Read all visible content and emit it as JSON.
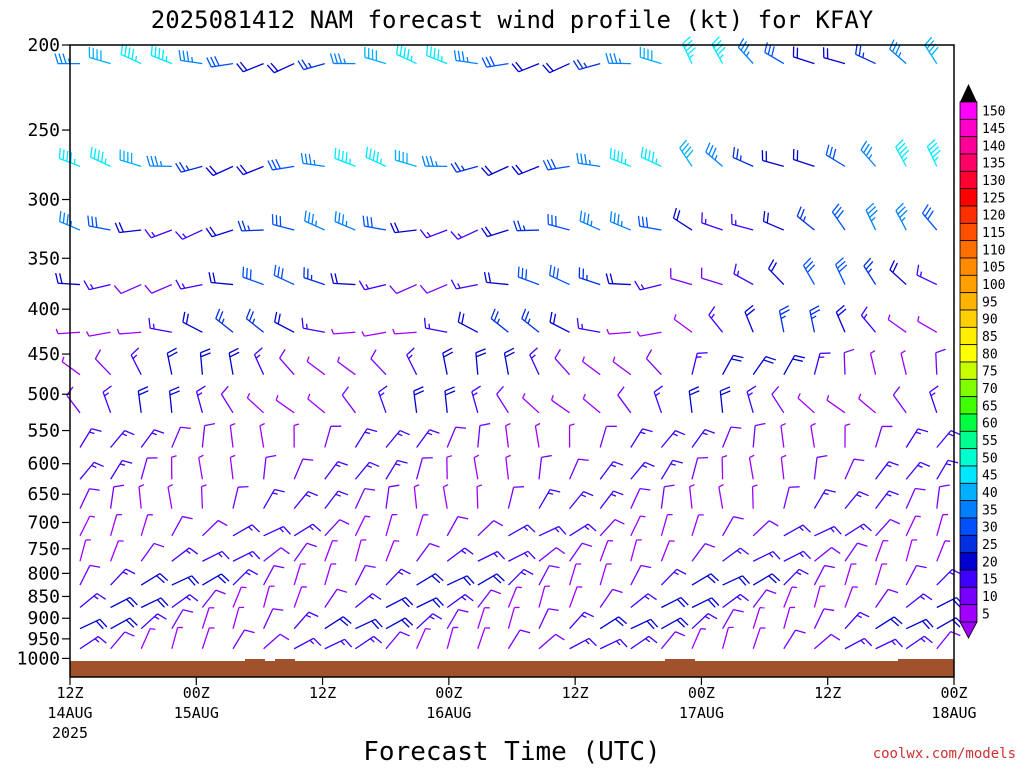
{
  "chart_data": {
    "type": "wind_barb_profile",
    "title": "2025081412 NAM forecast wind profile (kt) for KFAY",
    "xlabel": "Forecast Time (UTC)",
    "ylabel": "",
    "y_ticks": [
      "200",
      "250",
      "300",
      "350",
      "400",
      "450",
      "500",
      "550",
      "600",
      "650",
      "700",
      "750",
      "800",
      "850",
      "900",
      "950",
      "1000"
    ],
    "x_ticks": [
      {
        "time": "12Z",
        "date": "14AUG",
        "year": "2025"
      },
      {
        "time": "00Z",
        "date": "15AUG",
        "year": ""
      },
      {
        "time": "12Z",
        "date": "",
        "year": ""
      },
      {
        "time": "00Z",
        "date": "16AUG",
        "year": ""
      },
      {
        "time": "12Z",
        "date": "",
        "year": ""
      },
      {
        "time": "00Z",
        "date": "17AUG",
        "year": ""
      },
      {
        "time": "12Z",
        "date": "",
        "year": ""
      },
      {
        "time": "00Z",
        "date": "18AUG",
        "year": ""
      }
    ],
    "x_hours": [
      0,
      84
    ],
    "colorbar_labels": [
      "150",
      "145",
      "140",
      "135",
      "130",
      "125",
      "120",
      "115",
      "110",
      "105",
      "100",
      "95",
      "90",
      "85",
      "80",
      "75",
      "70",
      "65",
      "60",
      "55",
      "50",
      "45",
      "40",
      "35",
      "30",
      "25",
      "20",
      "15",
      "10",
      "5"
    ],
    "colorbar_colors": [
      "#ff00ff",
      "#ff00c8",
      "#ff0096",
      "#ff0064",
      "#ff0032",
      "#ff0000",
      "#ff3000",
      "#ff5000",
      "#ff7000",
      "#ff8c00",
      "#ffa000",
      "#ffb400",
      "#ffd000",
      "#ffee00",
      "#ffff00",
      "#c8ff00",
      "#80ff00",
      "#40ff00",
      "#00ff40",
      "#00ff90",
      "#00ffd0",
      "#00e8ff",
      "#00b0ff",
      "#0080ff",
      "#0050ff",
      "#0030e0",
      "#0000d0",
      "#4000ff",
      "#7800ff",
      "#a000ff"
    ],
    "surface_color": "#a0522d",
    "series_levels": [
      {
        "level": 210,
        "dir": "W",
        "speed_range_kt": [
          20,
          45
        ]
      },
      {
        "level": 275,
        "dir": "W",
        "speed_range_kt": [
          20,
          45
        ]
      },
      {
        "level": 325,
        "dir": "W",
        "speed_range_kt": [
          15,
          35
        ]
      },
      {
        "level": 375,
        "dir": "W",
        "speed_range_kt": [
          10,
          30
        ]
      },
      {
        "level": 425,
        "dir": "W-NW",
        "speed_range_kt": [
          5,
          25
        ]
      },
      {
        "level": 475,
        "dir": "NW-N",
        "speed_range_kt": [
          5,
          20
        ]
      },
      {
        "level": 525,
        "dir": "NW-N",
        "speed_range_kt": [
          5,
          20
        ]
      },
      {
        "level": 575,
        "dir": "N-NE",
        "speed_range_kt": [
          5,
          15
        ]
      },
      {
        "level": 625,
        "dir": "N-NE",
        "speed_range_kt": [
          5,
          15
        ]
      },
      {
        "level": 675,
        "dir": "N-NE",
        "speed_range_kt": [
          5,
          15
        ]
      },
      {
        "level": 725,
        "dir": "NE",
        "speed_range_kt": [
          5,
          15
        ]
      },
      {
        "level": 775,
        "dir": "NE",
        "speed_range_kt": [
          5,
          15
        ]
      },
      {
        "level": 825,
        "dir": "NE",
        "speed_range_kt": [
          5,
          20
        ]
      },
      {
        "level": 875,
        "dir": "NE",
        "speed_range_kt": [
          5,
          20
        ]
      },
      {
        "level": 925,
        "dir": "NE",
        "speed_range_kt": [
          5,
          20
        ]
      },
      {
        "level": 975,
        "dir": "NE",
        "speed_range_kt": [
          5,
          15
        ]
      }
    ]
  },
  "credit": "coolwx.com/models"
}
